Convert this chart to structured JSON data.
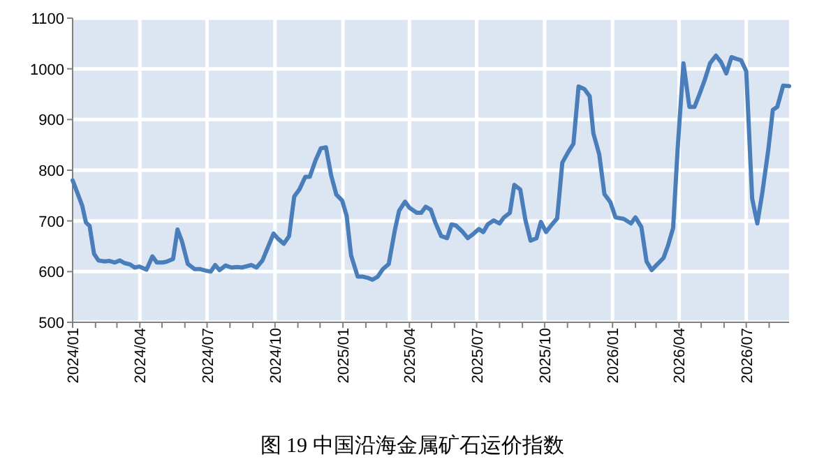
{
  "chart_data": {
    "type": "line",
    "title": "图 19 中国沿海金属矿石运价指数",
    "x": [
      "2024-01-01",
      "2024-01-14",
      "2024-01-19",
      "2024-01-24",
      "2024-01-30",
      "2024-02-05",
      "2024-02-13",
      "2024-02-20",
      "2024-02-27",
      "2024-03-05",
      "2024-03-11",
      "2024-03-19",
      "2024-03-25",
      "2024-03-31",
      "2024-04-10",
      "2024-04-18",
      "2024-04-24",
      "2024-05-02",
      "2024-05-08",
      "2024-05-16",
      "2024-05-22",
      "2024-05-28",
      "2024-06-05",
      "2024-06-14",
      "2024-06-21",
      "2024-06-29",
      "2024-07-06",
      "2024-07-12",
      "2024-07-18",
      "2024-07-26",
      "2024-08-03",
      "2024-08-11",
      "2024-08-17",
      "2024-08-30",
      "2024-09-06",
      "2024-09-14",
      "2024-09-29",
      "2024-10-05",
      "2024-10-13",
      "2024-10-20",
      "2024-10-27",
      "2024-11-03",
      "2024-11-11",
      "2024-11-17",
      "2024-11-25",
      "2024-12-02",
      "2024-12-09",
      "2024-12-16",
      "2024-12-23",
      "2024-12-31",
      "2025-01-06",
      "2025-01-12",
      "2025-01-21",
      "2025-01-28",
      "2025-02-03",
      "2025-02-10",
      "2025-02-17",
      "2025-02-24",
      "2025-03-04",
      "2025-03-12",
      "2025-03-18",
      "2025-03-26",
      "2025-04-01",
      "2025-04-11",
      "2025-04-17",
      "2025-04-23",
      "2025-04-30",
      "2025-05-06",
      "2025-05-14",
      "2025-05-22",
      "2025-05-28",
      "2025-06-03",
      "2025-06-11",
      "2025-06-19",
      "2025-06-27",
      "2025-07-04",
      "2025-07-10",
      "2025-07-16",
      "2025-07-24",
      "2025-08-01",
      "2025-08-07",
      "2025-08-15",
      "2025-08-21",
      "2025-08-29",
      "2025-09-05",
      "2025-09-12",
      "2025-09-20",
      "2025-09-26",
      "2025-10-03",
      "2025-10-11",
      "2025-10-18",
      "2025-10-25",
      "2025-11-02",
      "2025-11-09",
      "2025-11-16",
      "2025-11-24",
      "2025-12-01",
      "2025-12-06",
      "2025-12-14",
      "2025-12-21",
      "2025-12-29",
      "2026-01-05",
      "2026-01-16",
      "2026-01-26",
      "2026-02-01",
      "2026-02-09",
      "2026-02-16",
      "2026-02-23",
      "2026-03-03",
      "2026-03-11",
      "2026-03-17",
      "2026-03-24",
      "2026-03-30",
      "2026-04-07",
      "2026-04-15",
      "2026-04-22",
      "2026-04-29",
      "2026-05-06",
      "2026-05-13",
      "2026-05-21",
      "2026-05-28",
      "2026-06-04",
      "2026-06-11",
      "2026-06-17",
      "2026-06-24",
      "2026-07-01",
      "2026-07-09",
      "2026-07-16",
      "2026-07-23",
      "2026-07-31",
      "2026-08-06",
      "2026-08-12",
      "2026-08-20",
      "2026-08-28"
    ],
    "series": [
      {
        "color": "#4a7ebb",
        "values": [
          780,
          730,
          697,
          690,
          635,
          622,
          620,
          621,
          618,
          622,
          617,
          614,
          608,
          610,
          604,
          630,
          618,
          618,
          620,
          625,
          683,
          660,
          615,
          605,
          605,
          602,
          600,
          613,
          603,
          612,
          608,
          609,
          608,
          613,
          608,
          622,
          675,
          665,
          655,
          670,
          748,
          762,
          787,
          787,
          820,
          843,
          845,
          790,
          752,
          740,
          710,
          632,
          590,
          590,
          588,
          584,
          590,
          605,
          615,
          680,
          720,
          738,
          726,
          716,
          716,
          728,
          722,
          697,
          670,
          666,
          693,
          691,
          680,
          666,
          675,
          684,
          678,
          693,
          701,
          695,
          707,
          716,
          771,
          762,
          702,
          661,
          666,
          698,
          678,
          693,
          705,
          815,
          836,
          852,
          965,
          960,
          946,
          873,
          831,
          753,
          737,
          707,
          704,
          695,
          707,
          688,
          620,
          603,
          615,
          627,
          651,
          686,
          839,
          1011,
          925,
          925,
          951,
          979,
          1011,
          1026,
          1013,
          991,
          1023,
          1020,
          1017,
          995,
          744,
          695,
          758,
          842,
          919,
          925,
          967,
          966
        ]
      }
    ],
    "xlim": [
      "2024-01-01",
      "2026-08-28"
    ],
    "ylim": [
      500,
      1100
    ],
    "yticks": [
      500,
      600,
      700,
      800,
      900,
      1000,
      1100
    ],
    "xticks": [
      {
        "value": "2024-01",
        "label": "2024/01"
      },
      {
        "value": "2024-02",
        "label": null
      },
      {
        "value": "2024-03",
        "label": null
      },
      {
        "value": "2024-04",
        "label": "2024/04"
      },
      {
        "value": "2024-05",
        "label": null
      },
      {
        "value": "2024-06",
        "label": null
      },
      {
        "value": "2024-07",
        "label": "2024/07"
      },
      {
        "value": "2024-08",
        "label": null
      },
      {
        "value": "2024-09",
        "label": null
      },
      {
        "value": "2024-10",
        "label": "2024/10"
      },
      {
        "value": "2024-11",
        "label": null
      },
      {
        "value": "2024-12",
        "label": null
      },
      {
        "value": "2025-01",
        "label": "2025/01"
      },
      {
        "value": "2025-02",
        "label": null
      },
      {
        "value": "2025-03",
        "label": null
      },
      {
        "value": "2025-04",
        "label": "2025/04"
      },
      {
        "value": "2025-05",
        "label": null
      },
      {
        "value": "2025-06",
        "label": null
      },
      {
        "value": "2025-07",
        "label": "2025/07"
      },
      {
        "value": "2025-08",
        "label": null
      },
      {
        "value": "2025-09",
        "label": null
      },
      {
        "value": "2025-10",
        "label": "2025/10"
      },
      {
        "value": "2025-11",
        "label": null
      },
      {
        "value": "2025-12",
        "label": null
      },
      {
        "value": "2026-01",
        "label": "2026/01"
      },
      {
        "value": "2026-02",
        "label": null
      },
      {
        "value": "2026-03",
        "label": null
      },
      {
        "value": "2026-04",
        "label": "2026/04"
      },
      {
        "value": "2026-05",
        "label": null
      },
      {
        "value": "2026-06",
        "label": null
      },
      {
        "value": "2026-07",
        "label": "2026/07"
      },
      {
        "value": "2026-08",
        "label": null
      }
    ],
    "grid": true
  }
}
